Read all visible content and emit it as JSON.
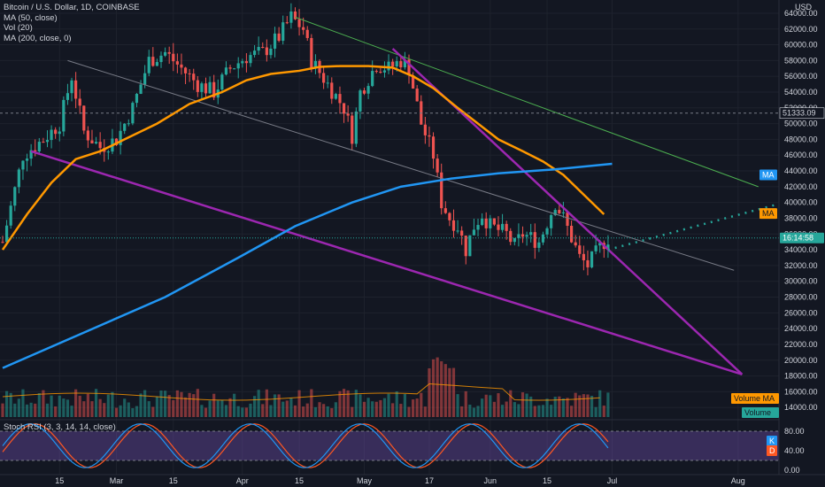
{
  "legend": {
    "title": "Bitcoin / U.S. Dollar, 1D, COINBASE",
    "ma50": "MA (50, close)",
    "vol": "Vol (20)",
    "ma200": "MA (200, close, 0)"
  },
  "currency": "USD",
  "price_labels": {
    "reference": "51333.09",
    "countdown": "16:14:58",
    "ma200_tag": "MA",
    "ma50_tag": "MA",
    "volume_ma_tag": "Volume MA",
    "volume_tag": "Volume",
    "k_tag": "K",
    "d_tag": "D"
  },
  "stoch_label": "Stoch RSI (3, 3, 14, 14, close)",
  "colors": {
    "background": "#131722",
    "grid": "#1e222d",
    "up": "#26a69a",
    "down": "#ef5350",
    "ma50": "#ff9800",
    "ma200": "#2196f3",
    "trend": "#9c27b0",
    "channel": "#787b86",
    "upper_trend": "#4caf50",
    "stoch_k": "#2196f3",
    "stoch_d": "#ff5722",
    "stoch_band": "#7e57c2"
  },
  "chart_data": {
    "type": "candlestick",
    "price_axis": {
      "min": 12000,
      "max": 64000,
      "ticks": [
        14000,
        16000,
        18000,
        20000,
        22000,
        24000,
        26000,
        28000,
        30000,
        32000,
        34000,
        36000,
        38000,
        40000,
        42000,
        44000,
        46000,
        48000,
        50000,
        52000,
        54000,
        56000,
        58000,
        60000,
        62000,
        64000
      ],
      "reference_price": 51333.09,
      "last_price": 35500
    },
    "time_axis": {
      "labels": [
        "15",
        "Mar",
        "15",
        "Apr",
        "15",
        "May",
        "17",
        "Jun",
        "15",
        "Jul",
        "Aug"
      ],
      "positions_days": [
        14,
        28,
        42,
        59,
        73,
        89,
        105,
        120,
        134,
        150,
        181
      ],
      "start": "2021-02-01",
      "end_days": 185
    },
    "ma50": [
      [
        0,
        34000
      ],
      [
        6,
        38500
      ],
      [
        12,
        42500
      ],
      [
        18,
        45500
      ],
      [
        24,
        46500
      ],
      [
        30,
        48000
      ],
      [
        38,
        50000
      ],
      [
        46,
        52500
      ],
      [
        54,
        54000
      ],
      [
        60,
        55500
      ],
      [
        66,
        56300
      ],
      [
        73,
        56700
      ],
      [
        78,
        57200
      ],
      [
        83,
        57300
      ],
      [
        90,
        57300
      ],
      [
        96,
        57100
      ],
      [
        101,
        56000
      ],
      [
        106,
        54500
      ],
      [
        112,
        52000
      ],
      [
        117,
        50000
      ],
      [
        122,
        48000
      ],
      [
        128,
        46500
      ],
      [
        133,
        45200
      ],
      [
        138,
        43500
      ],
      [
        143,
        41000
      ],
      [
        148,
        38500
      ]
    ],
    "ma200": [
      [
        0,
        19000
      ],
      [
        20,
        23500
      ],
      [
        40,
        28000
      ],
      [
        58,
        33000
      ],
      [
        72,
        37000
      ],
      [
        86,
        40000
      ],
      [
        98,
        42000
      ],
      [
        110,
        43000
      ],
      [
        122,
        43700
      ],
      [
        136,
        44200
      ],
      [
        148,
        44800
      ],
      [
        150,
        44900
      ]
    ],
    "stoch_rsi": {
      "levels": [
        0,
        40,
        80
      ],
      "band": [
        20,
        80
      ]
    },
    "trendlines": [
      {
        "name": "upper-trend",
        "from": [
          72,
          63500
        ],
        "to": [
          186,
          42000
        ]
      },
      {
        "name": "channel",
        "from": [
          16,
          58000
        ],
        "to": [
          180,
          31400
        ]
      },
      {
        "name": "lower-support",
        "from": [
          7,
          46500
        ],
        "to": [
          182,
          18200
        ]
      },
      {
        "name": "falling-trend",
        "from": [
          96,
          59500
        ],
        "to": [
          182,
          18200
        ]
      }
    ],
    "projection": {
      "from": [
        149,
        34000
      ],
      "to": [
        196,
        40500
      ]
    }
  },
  "grid": true
}
